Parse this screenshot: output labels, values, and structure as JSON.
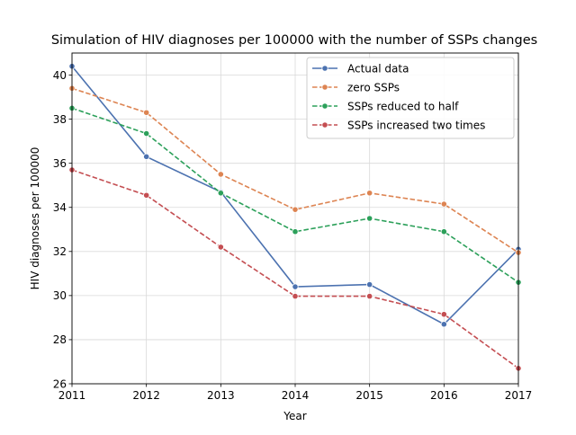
{
  "chart_data": {
    "type": "line",
    "title": "Simulation of HIV diagnoses per 100000 with the number of SSPs changes",
    "xlabel": "Year",
    "ylabel": "HIV diagnoses per 100000",
    "x": [
      2011,
      2012,
      2013,
      2014,
      2015,
      2016,
      2017
    ],
    "xlim": [
      2011,
      2017
    ],
    "ylim": [
      26,
      41
    ],
    "yticks": [
      26,
      28,
      30,
      32,
      34,
      36,
      38,
      40
    ],
    "grid": true,
    "legend_position": "upper right",
    "series": [
      {
        "name": "Actual data",
        "color": "#4c72b0",
        "dash": "solid",
        "values": [
          40.4,
          36.3,
          34.7,
          30.4,
          30.5,
          28.7,
          32.1
        ]
      },
      {
        "name": "zero SSPs",
        "color": "#dd8452",
        "dash": "dashed",
        "values": [
          39.4,
          38.3,
          35.5,
          33.9,
          34.65,
          34.15,
          31.95
        ]
      },
      {
        "name": "SSPs reduced to half",
        "color": "#2ca05a",
        "dash": "dashed",
        "values": [
          38.5,
          37.35,
          34.65,
          32.9,
          33.5,
          32.9,
          30.6
        ]
      },
      {
        "name": "SSPs increased two times",
        "color": "#c44e52",
        "dash": "dashed",
        "values": [
          35.7,
          34.55,
          32.2,
          29.97,
          29.97,
          29.15,
          26.7
        ]
      }
    ]
  }
}
